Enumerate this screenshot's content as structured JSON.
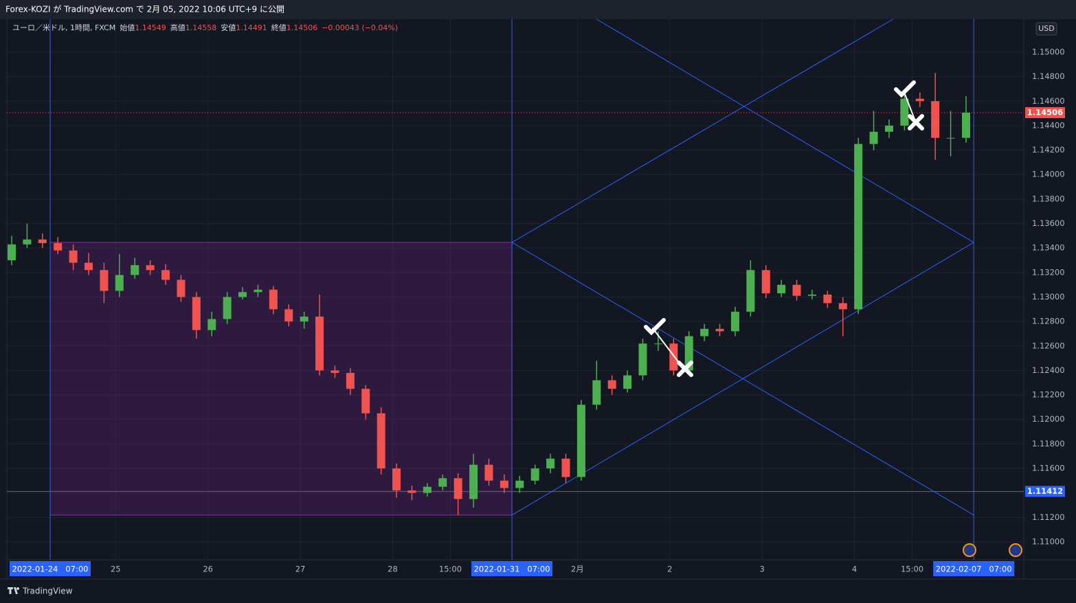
{
  "header": {
    "title": "Forex-KOZI が TradingView.com で 2月 05, 2022 10:06 UTC+9 に公開"
  },
  "chart_data": {
    "type": "candlestick",
    "legend": {
      "symbol": "ユーロ／米ドル, 1時間, FXCM",
      "items": [
        {
          "label": "始値",
          "value": "1.14549"
        },
        {
          "label": "高値",
          "value": "1.14558"
        },
        {
          "label": "安値",
          "value": "1.14491"
        },
        {
          "label": "終値",
          "value": "1.14506"
        }
      ],
      "change": "−0.00043 (−0.04%)"
    },
    "currency": "USD",
    "up_color": "#4caf50",
    "down_color": "#ef5350",
    "x": [
      -10,
      -6,
      -2,
      2,
      6,
      10,
      14,
      18,
      22,
      26,
      30,
      34,
      38,
      42,
      46,
      50,
      54,
      58,
      62,
      66,
      70,
      74,
      78,
      82,
      86,
      90,
      94,
      98,
      102,
      106,
      110,
      114,
      118,
      122,
      126,
      130,
      134,
      138,
      142,
      146,
      150,
      154,
      158,
      162,
      166,
      170,
      174,
      178,
      182,
      186,
      190,
      194,
      198,
      202,
      206,
      210,
      214,
      218,
      222,
      226,
      230,
      234,
      238
    ],
    "open": [
      1.133,
      1.1343,
      1.1347,
      1.1344,
      1.1338,
      1.1328,
      1.1322,
      1.1305,
      1.1318,
      1.1326,
      1.1322,
      1.1314,
      1.13,
      1.1273,
      1.1282,
      1.13,
      1.1304,
      1.1306,
      1.129,
      1.128,
      1.1284,
      1.124,
      1.1238,
      1.1225,
      1.1205,
      1.116,
      1.1142,
      1.114,
      1.1145,
      1.1152,
      1.1135,
      1.1163,
      1.115,
      1.1144,
      1.115,
      1.116,
      1.1168,
      1.1153,
      1.1212,
      1.1232,
      1.1225,
      1.1236,
      1.1262,
      1.1262,
      1.124,
      1.1268,
      1.1274,
      1.1272,
      1.1288,
      1.1322,
      1.1303,
      1.131,
      1.1301,
      1.1302,
      1.1295,
      1.129,
      1.1425,
      1.1435,
      1.144,
      1.1462,
      1.146,
      1.143,
      1.143
    ],
    "high": [
      1.135,
      1.136,
      1.1352,
      1.1349,
      1.1343,
      1.1336,
      1.1328,
      1.1335,
      1.1332,
      1.133,
      1.1327,
      1.1318,
      1.1304,
      1.1288,
      1.1304,
      1.1308,
      1.131,
      1.1309,
      1.1294,
      1.1288,
      1.1302,
      1.1244,
      1.1242,
      1.1228,
      1.121,
      1.1164,
      1.1146,
      1.1148,
      1.1155,
      1.1156,
      1.1172,
      1.1168,
      1.1155,
      1.1154,
      1.1163,
      1.1172,
      1.1172,
      1.1216,
      1.1248,
      1.1236,
      1.124,
      1.1266,
      1.1272,
      1.1266,
      1.1272,
      1.1278,
      1.1278,
      1.1292,
      1.133,
      1.1326,
      1.1314,
      1.1314,
      1.1306,
      1.1305,
      1.13,
      1.143,
      1.1452,
      1.1445,
      1.1467,
      1.1467,
      1.1483,
      1.1452,
      1.1464
    ],
    "low": [
      1.1326,
      1.134,
      1.134,
      1.1335,
      1.1322,
      1.1318,
      1.1295,
      1.13,
      1.1315,
      1.1318,
      1.131,
      1.1296,
      1.1266,
      1.1268,
      1.1278,
      1.1298,
      1.13,
      1.1286,
      1.1276,
      1.1274,
      1.1236,
      1.1234,
      1.122,
      1.12,
      1.1155,
      1.1136,
      1.1134,
      1.1137,
      1.1142,
      1.1122,
      1.1128,
      1.1146,
      1.114,
      1.114,
      1.1147,
      1.1156,
      1.1148,
      1.115,
      1.1208,
      1.122,
      1.1222,
      1.1232,
      1.1256,
      1.1236,
      1.1236,
      1.1264,
      1.1268,
      1.1268,
      1.1284,
      1.1299,
      1.13,
      1.1297,
      1.1298,
      1.1291,
      1.1268,
      1.1286,
      1.142,
      1.143,
      1.1436,
      1.1455,
      1.1412,
      1.1415,
      1.1426
    ],
    "close": [
      1.1343,
      1.1347,
      1.1344,
      1.1338,
      1.1328,
      1.1322,
      1.1305,
      1.1318,
      1.1326,
      1.1322,
      1.1314,
      1.13,
      1.1273,
      1.1282,
      1.13,
      1.1304,
      1.1306,
      1.129,
      1.128,
      1.1284,
      1.124,
      1.1238,
      1.1225,
      1.1205,
      1.116,
      1.1142,
      1.114,
      1.1145,
      1.1152,
      1.1135,
      1.1163,
      1.115,
      1.1144,
      1.115,
      1.116,
      1.1168,
      1.1153,
      1.1212,
      1.1232,
      1.1225,
      1.1236,
      1.1262,
      1.1262,
      1.124,
      1.1268,
      1.1274,
      1.1272,
      1.1288,
      1.1322,
      1.1303,
      1.131,
      1.1301,
      1.1302,
      1.1295,
      1.129,
      1.1425,
      1.1435,
      1.144,
      1.1462,
      1.146,
      1.143,
      1.143,
      1.14506
    ],
    "xlim": [
      -11.25,
      253
    ],
    "ylim": [
      1.10854,
      1.15269
    ],
    "xticks": [
      {
        "value": 0,
        "label": "2022-01-24   07:00"
      },
      {
        "value": 17,
        "label": "25"
      },
      {
        "value": 41,
        "label": "26"
      },
      {
        "value": 65,
        "label": "27"
      },
      {
        "value": 89,
        "label": "28"
      },
      {
        "value": 104,
        "label": "15:00"
      },
      {
        "value": 120,
        "label": "2022-01-31   07:00"
      },
      {
        "value": 137,
        "label": "2月"
      },
      {
        "value": 161,
        "label": "2"
      },
      {
        "value": 185,
        "label": "3"
      },
      {
        "value": 209,
        "label": "4"
      },
      {
        "value": 224,
        "label": "15:00"
      },
      {
        "value": 240,
        "label": "2022-02-07   07:00"
      }
    ],
    "yticks": [
      {
        "value": 1.11,
        "label": "1.11000"
      },
      {
        "value": 1.112,
        "label": "1.11200"
      },
      {
        "value": 1.114,
        "label": "1.11400"
      },
      {
        "value": 1.116,
        "label": "1.11600"
      },
      {
        "value": 1.118,
        "label": "1.11800"
      },
      {
        "value": 1.12,
        "label": "1.12000"
      },
      {
        "value": 1.122,
        "label": "1.12200"
      },
      {
        "value": 1.124,
        "label": "1.12400"
      },
      {
        "value": 1.126,
        "label": "1.12600"
      },
      {
        "value": 1.128,
        "label": "1.12800"
      },
      {
        "value": 1.13,
        "label": "1.13000"
      },
      {
        "value": 1.132,
        "label": "1.13200"
      },
      {
        "value": 1.134,
        "label": "1.13400"
      },
      {
        "value": 1.136,
        "label": "1.13600"
      },
      {
        "value": 1.138,
        "label": "1.13800"
      },
      {
        "value": 1.14,
        "label": "1.14000"
      },
      {
        "value": 1.142,
        "label": "1.14200"
      },
      {
        "value": 1.144,
        "label": "1.14400"
      },
      {
        "value": 1.146,
        "label": "1.14600"
      },
      {
        "value": 1.148,
        "label": "1.14800"
      },
      {
        "value": 1.15,
        "label": "1.15000"
      }
    ],
    "grid": true,
    "last_price": 1.14506,
    "horizontal_line": 1.11412,
    "vertical_lines": [
      0,
      120,
      240
    ],
    "rectangle": {
      "x": [
        0,
        120
      ],
      "y": [
        1.13446,
        1.11219
      ]
    },
    "trend_lines": [
      [
        [
          120,
          1.13446
        ],
        [
          240,
          1.11219
        ]
      ],
      [
        [
          120,
          1.11219
        ],
        [
          240,
          1.13446
        ]
      ],
      [
        [
          120,
          1.13446
        ],
        [
          219,
          1.15269
        ]
      ],
      [
        [
          142,
          1.15269
        ],
        [
          240,
          1.13446
        ]
      ]
    ]
  },
  "footer": {
    "brand": "TradingView"
  }
}
